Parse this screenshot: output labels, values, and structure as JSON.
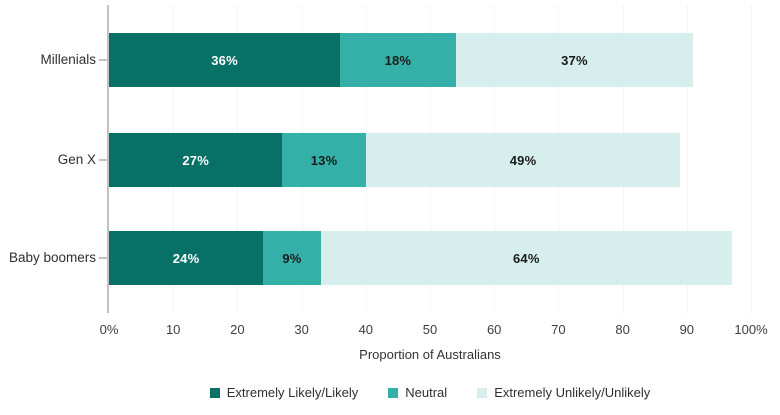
{
  "chart_data": {
    "type": "bar",
    "orientation": "horizontal",
    "stacked": true,
    "title": "",
    "categories": [
      "Millenials",
      "Gen X",
      "Baby boomers"
    ],
    "series": [
      {
        "name": "Extremely Likely/Likely",
        "color": "#077168",
        "label_color": "#ffffff",
        "values": [
          36,
          27,
          24
        ],
        "labels": [
          "36%",
          "27%",
          "24%"
        ]
      },
      {
        "name": "Neutral",
        "color": "#34b0a8",
        "label_color": "#1b1b1b",
        "values": [
          18,
          13,
          9
        ],
        "labels": [
          "18%",
          "13%",
          "9%"
        ]
      },
      {
        "name": "Extremely Unlikely/Unlikely",
        "color": "#d6eeec",
        "label_color": "#1b1b1b",
        "values": [
          37,
          49,
          64
        ],
        "labels": [
          "37%",
          "49%",
          "64%"
        ]
      }
    ],
    "xlabel": "Proportion of Australians",
    "ylabel": "",
    "xlim": [
      0,
      100
    ],
    "x_ticks": [
      {
        "value": 0,
        "label": "0%"
      },
      {
        "value": 10,
        "label": "10"
      },
      {
        "value": 20,
        "label": "20"
      },
      {
        "value": 30,
        "label": "30"
      },
      {
        "value": 40,
        "label": "40"
      },
      {
        "value": 50,
        "label": "50"
      },
      {
        "value": 60,
        "label": "60"
      },
      {
        "value": 70,
        "label": "70"
      },
      {
        "value": 80,
        "label": "80"
      },
      {
        "value": 90,
        "label": "90"
      },
      {
        "value": 100,
        "label": "100%"
      }
    ],
    "grid": true,
    "legend_position": "bottom"
  }
}
